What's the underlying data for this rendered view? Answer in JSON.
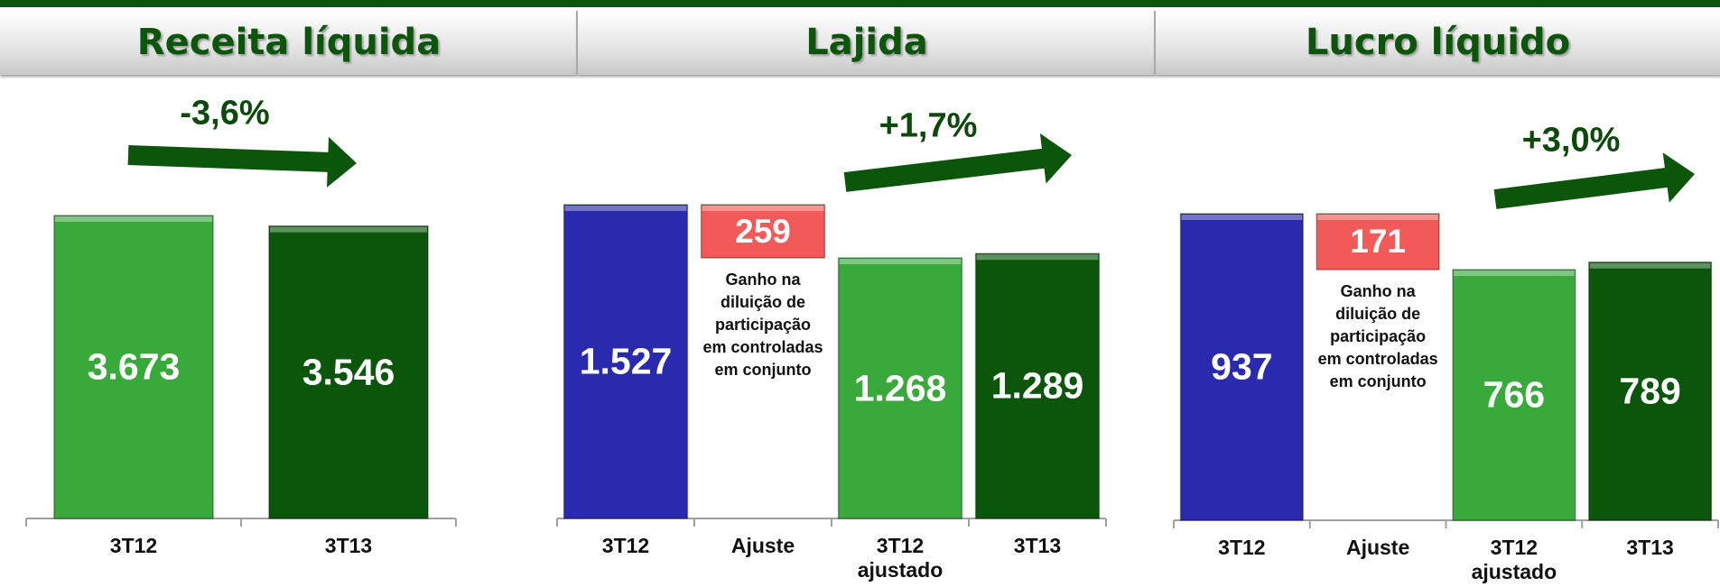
{
  "chart_data": [
    {
      "type": "bar",
      "title": "Receita líquida",
      "annotation": "-3,6%",
      "categories": [
        "3T12",
        "3T13"
      ],
      "values": [
        3673,
        3546
      ],
      "value_labels": [
        "3.673",
        "3.546"
      ],
      "colors": [
        "#3aa93c",
        "#0b560b"
      ]
    },
    {
      "type": "waterfall",
      "title": "Lajida",
      "annotation": "+1,7%",
      "categories": [
        "3T12",
        "Ajuste",
        "3T12 ajustado",
        "3T13"
      ],
      "values": [
        1527,
        259,
        1268,
        1289
      ],
      "value_labels": [
        "1.527",
        "259",
        "1.268",
        "1.289"
      ],
      "floating": [
        false,
        true,
        false,
        false
      ],
      "colors": [
        "#2a2aae",
        "#f25a5a",
        "#3aa93c",
        "#0b560b"
      ],
      "note": "Ganho na diluição de participação em controladas em conjunto"
    },
    {
      "type": "waterfall",
      "title": "Lucro líquido",
      "annotation": "+3,0%",
      "categories": [
        "3T12",
        "Ajuste",
        "3T12 ajustado",
        "3T13"
      ],
      "values": [
        937,
        171,
        766,
        789
      ],
      "value_labels": [
        "937",
        "171",
        "766",
        "789"
      ],
      "floating": [
        false,
        true,
        false,
        false
      ],
      "colors": [
        "#2a2aae",
        "#f25a5a",
        "#3aa93c",
        "#0b560b"
      ],
      "note": "Ganho na diluição de participação em controladas em conjunto"
    }
  ]
}
